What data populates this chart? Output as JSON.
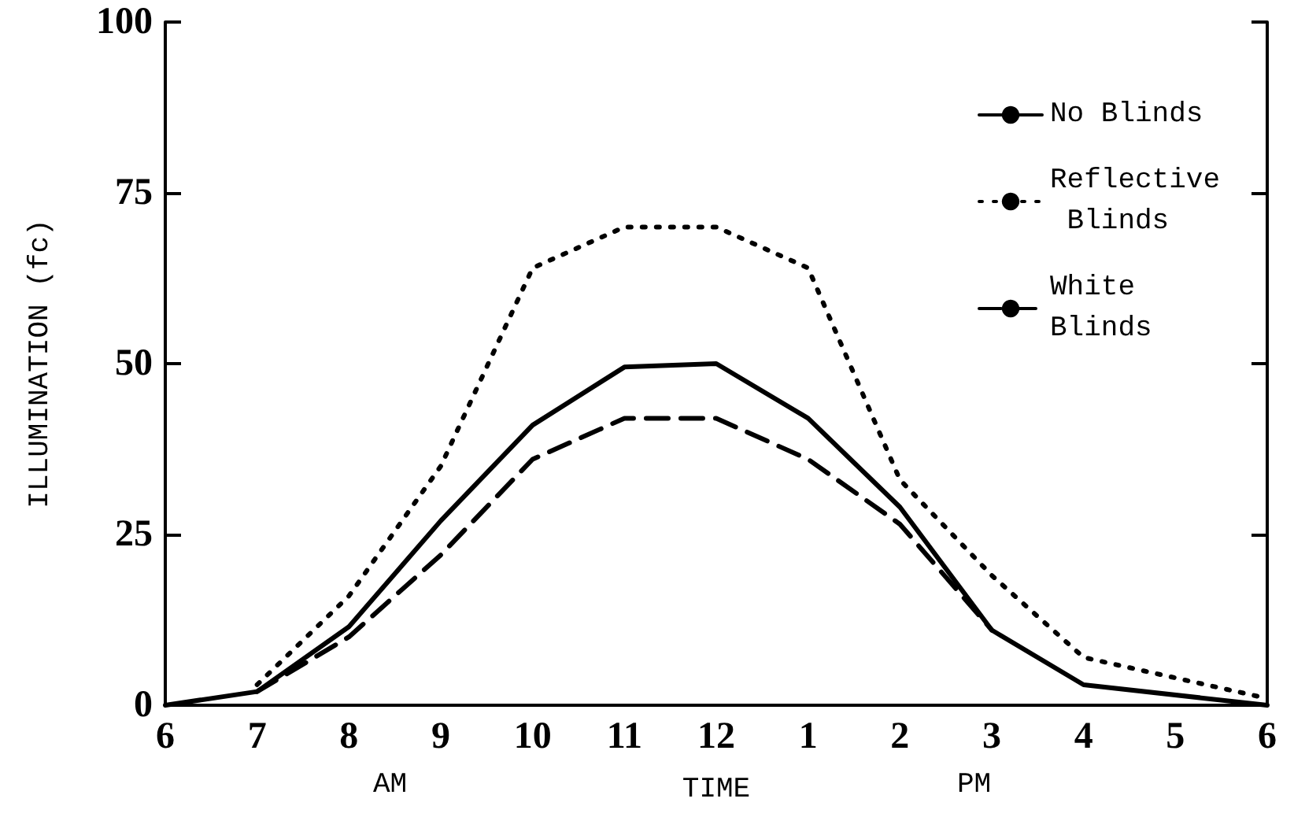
{
  "chart_data": {
    "type": "line",
    "xlabel": "TIME",
    "ylabel": "ILLUMINATION (fc)",
    "annotations": [
      "AM",
      "PM"
    ],
    "categories": [
      "6",
      "7",
      "8",
      "9",
      "10",
      "11",
      "12",
      "1",
      "2",
      "3",
      "4",
      "5",
      "6"
    ],
    "ylim": [
      0,
      100
    ],
    "yticks": [
      0,
      25,
      50,
      75,
      100
    ],
    "grid": false,
    "legend": "top right",
    "marker": "none",
    "series": [
      {
        "name": "No Blinds",
        "color": "#000000",
        "line_style": "solid",
        "values": [
          0,
          2,
          11.5,
          27,
          41,
          49.5,
          50,
          42,
          29,
          11,
          3,
          null,
          0
        ]
      },
      {
        "name": "Reflective Blinds",
        "color": "#000000",
        "line_style": "dotted",
        "values": [
          null,
          3,
          16,
          35,
          64,
          70,
          70,
          64,
          33,
          19,
          7,
          4,
          1
        ]
      },
      {
        "name": "White Blinds",
        "color": "#000000",
        "line_style": "dashed",
        "values": [
          null,
          2,
          10,
          22,
          36,
          42,
          42,
          36,
          26.5,
          11,
          null,
          null,
          null
        ]
      }
    ]
  }
}
